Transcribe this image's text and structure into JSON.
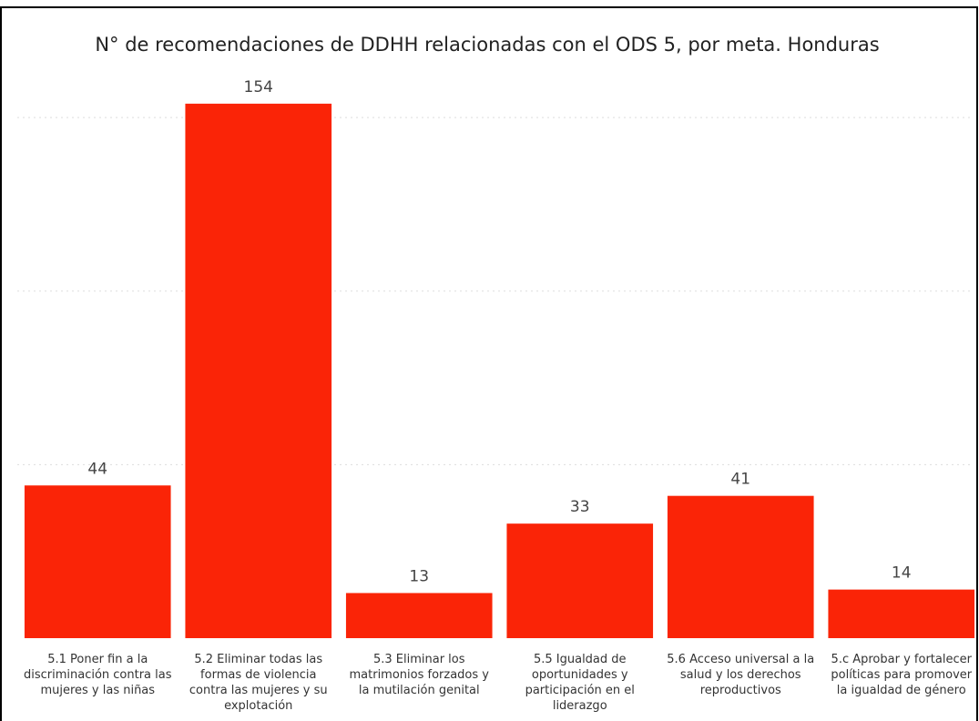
{
  "chart_data": {
    "type": "bar",
    "title": "N° de recomendaciones de DDHH relacionadas con el ODS 5, por meta. Honduras",
    "categories": [
      "5.1 Poner fin a la discriminación contra las mujeres y las niñas",
      "5.2 Eliminar todas las formas de violencia contra las mujeres y su explotación",
      "5.3 Eliminar los matrimonios forzados y la mutilación genital",
      "5.5 Igualdad de oportunidades y participación en el liderazgo",
      "5.6 Acceso universal a la salud y los derechos reproductivos",
      "5.c Aprobar y fortalecer políticas para promover la igualdad de género"
    ],
    "values": [
      44,
      154,
      13,
      33,
      41,
      14
    ],
    "color": "#fa2407",
    "ylim": [
      0,
      160
    ],
    "yticks": [
      50,
      100,
      150
    ],
    "grid": true
  }
}
